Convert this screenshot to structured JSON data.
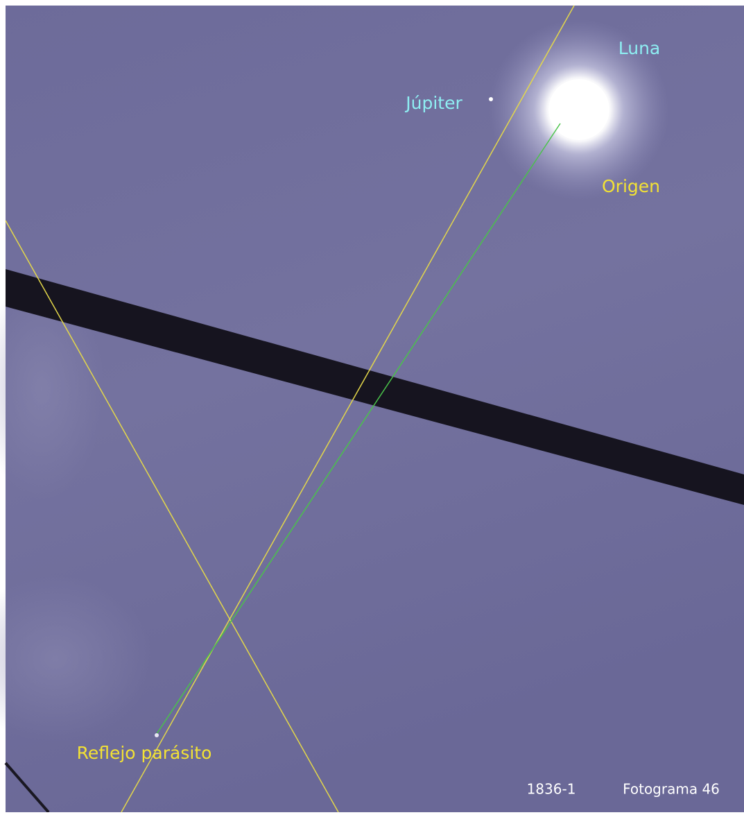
{
  "annotations": {
    "moon": "Luna",
    "jupiter": "Júpiter",
    "origin": "Origen",
    "reflection": "Reflejo parásito"
  },
  "footer": {
    "code": "1836-1",
    "frame": "Fotograma 46"
  }
}
